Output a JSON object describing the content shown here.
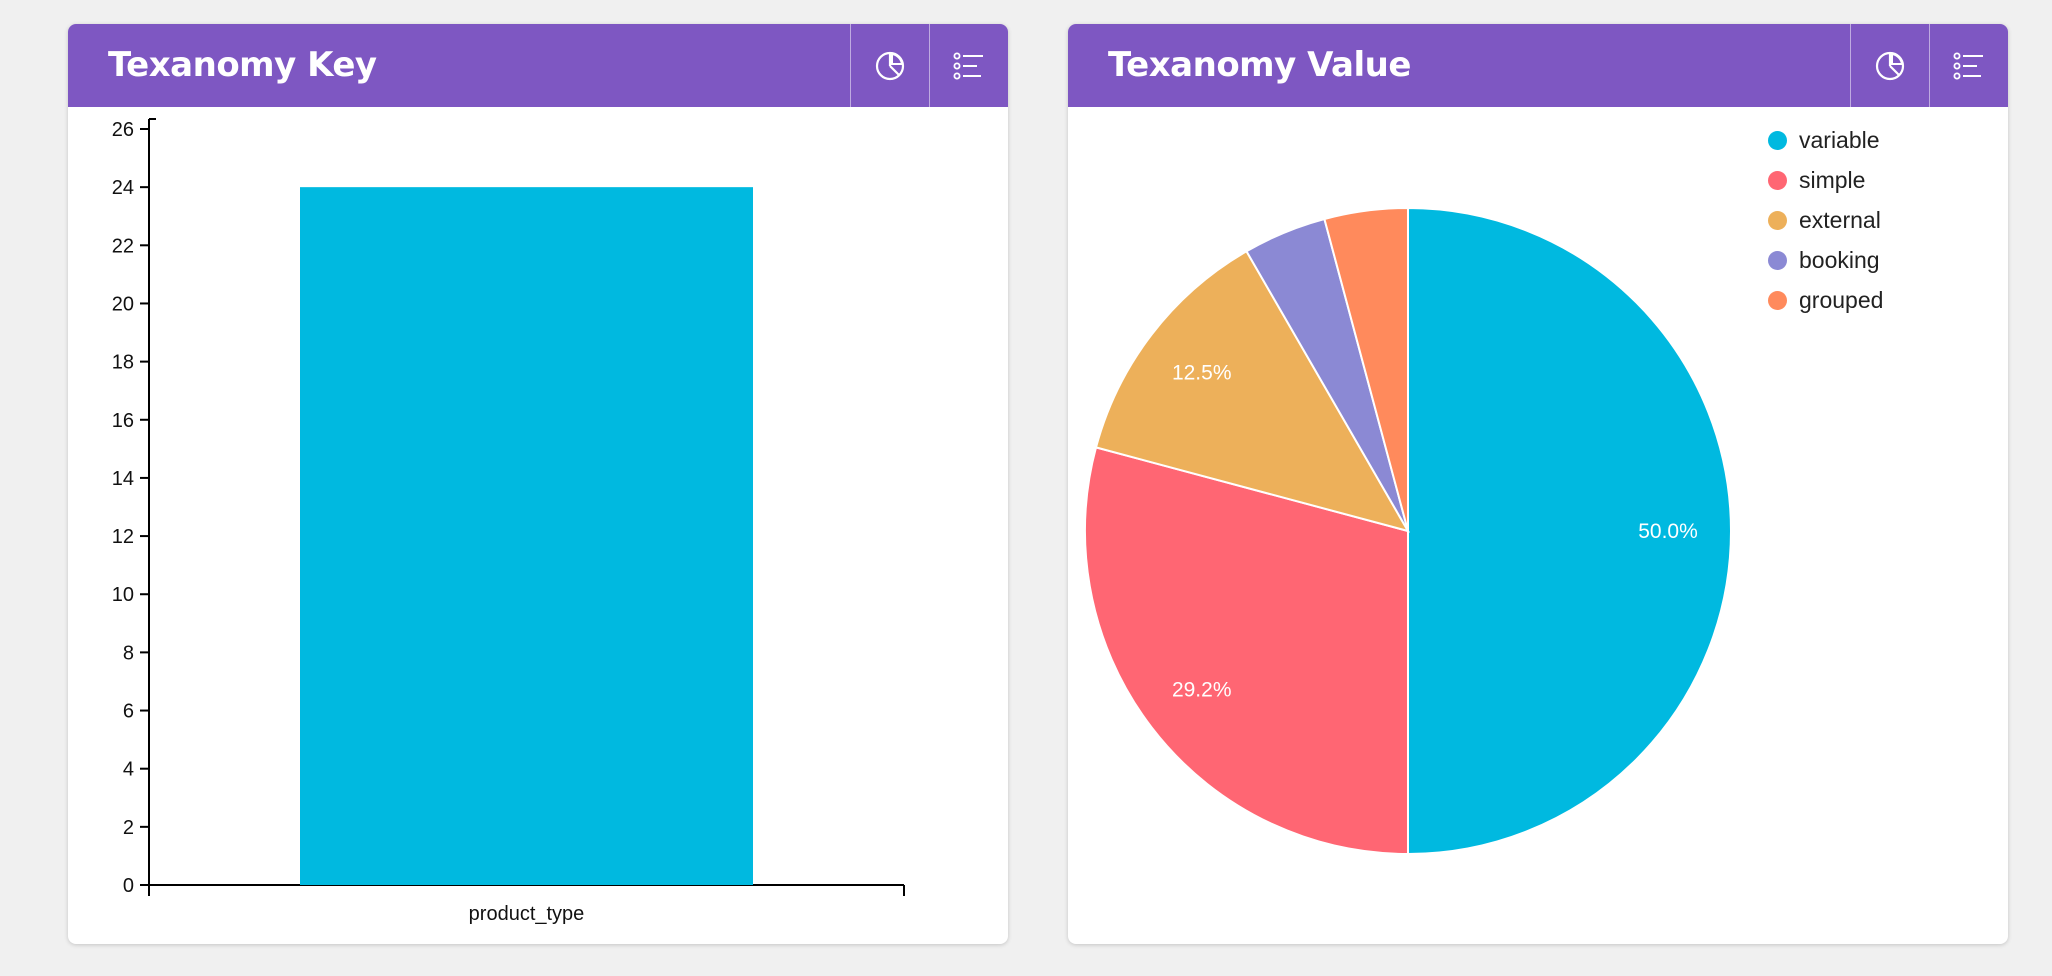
{
  "panels": {
    "left": {
      "title": "Texanomy Key"
    },
    "right": {
      "title": "Texanomy Value"
    }
  },
  "icons": {
    "pie_button": "pie-chart-icon",
    "list_button": "list-icon"
  },
  "chart_data": [
    {
      "type": "bar",
      "title": "Texanomy Key",
      "categories": [
        "product_type"
      ],
      "values": [
        24
      ],
      "xlabel": "",
      "ylabel": "",
      "ylim": [
        0,
        26
      ],
      "yticks": [
        0,
        2,
        4,
        6,
        8,
        10,
        12,
        14,
        16,
        18,
        20,
        22,
        24,
        26
      ],
      "color": "#00b9e0"
    },
    {
      "type": "pie",
      "title": "Texanomy Value",
      "labels": [
        "variable",
        "simple",
        "external",
        "booking",
        "grouped"
      ],
      "values": [
        12,
        7,
        3,
        1,
        1
      ],
      "percent_labels": [
        "50.0%",
        "29.2%",
        "12.5%",
        "",
        ""
      ],
      "colors": [
        "#00b9e0",
        "#ff6673",
        "#edb05a",
        "#8b89d4",
        "#ff8a5c"
      ],
      "legend": "top-right"
    }
  ]
}
